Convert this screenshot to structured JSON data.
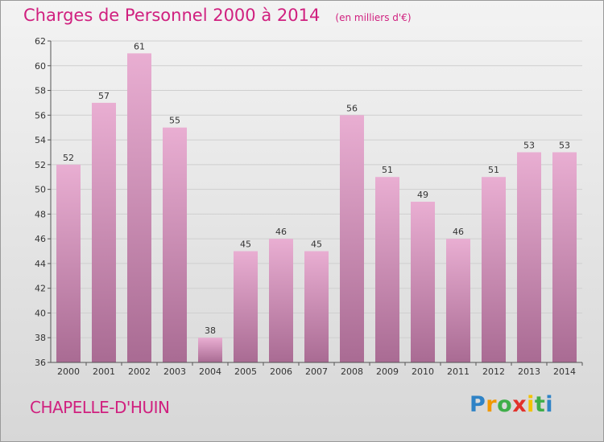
{
  "header": {
    "title": "Charges de Personnel 2000 à 2014",
    "unit": "(en milliers d'€)"
  },
  "commune": "CHAPELLE-D'HUIN",
  "logo": {
    "text": "Proxiti"
  },
  "colors": {
    "title": "#d0207f",
    "bar_top": "#e9aed2",
    "bar_bottom": "#a96b93",
    "grid": "#cfcfcf",
    "axis": "#555555"
  },
  "chart_data": {
    "type": "bar",
    "title": "Charges de Personnel 2000 à 2014",
    "subtitle": "(en milliers d'€)",
    "xlabel": "",
    "ylabel": "",
    "categories": [
      "2000",
      "2001",
      "2002",
      "2003",
      "2004",
      "2005",
      "2006",
      "2007",
      "2008",
      "2009",
      "2010",
      "2011",
      "2012",
      "2013",
      "2014"
    ],
    "values": [
      52,
      57,
      61,
      55,
      38,
      45,
      46,
      45,
      56,
      51,
      49,
      46,
      51,
      53,
      53
    ],
    "ylim": [
      36,
      62
    ],
    "yticks": [
      36,
      38,
      40,
      42,
      44,
      46,
      48,
      50,
      52,
      54,
      56,
      58,
      60,
      62
    ],
    "grid": true,
    "legend": "none",
    "data_labels": true
  }
}
